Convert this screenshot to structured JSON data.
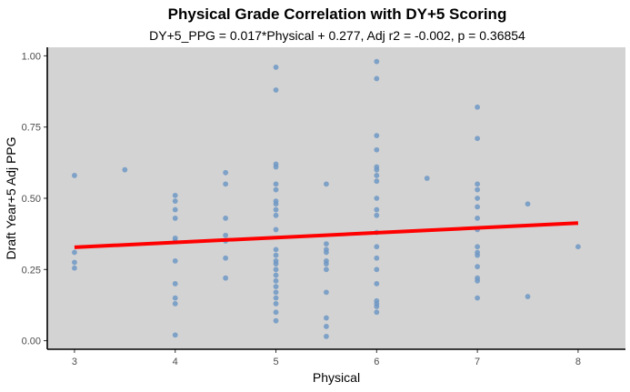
{
  "chart_data": {
    "type": "scatter",
    "title": "Physical Grade Correlation with DY+5 Scoring",
    "subtitle": "DY+5_PPG = 0.017*Physical + 0.277, Adj r2 = -0.002, p = 0.36854",
    "xlabel": "Physical",
    "ylabel": "Draft Year+5 Adj PPG",
    "xlim": [
      2.73,
      8.47
    ],
    "ylim": [
      -0.03,
      1.03
    ],
    "x_ticks": [
      3,
      4,
      5,
      6,
      7,
      8
    ],
    "x_tick_labels": [
      "3",
      "4",
      "5",
      "6",
      "7",
      "8"
    ],
    "y_ticks": [
      0.0,
      0.25,
      0.5,
      0.75,
      1.0
    ],
    "y_tick_labels": [
      "0.00",
      "0.25",
      "0.50",
      "0.75",
      "1.00"
    ],
    "grid": false,
    "background": "#d3d3d3",
    "point_color": "#6e98c4",
    "line_color": "#ff0000",
    "regression": {
      "slope": 0.017,
      "intercept": 0.277,
      "x_range": [
        3,
        8
      ]
    },
    "series": [
      {
        "points": [
          {
            "x": 3,
            "y": 0.58
          },
          {
            "x": 3,
            "y": 0.31
          },
          {
            "x": 3,
            "y": 0.275
          },
          {
            "x": 3,
            "y": 0.255
          },
          {
            "x": 3.5,
            "y": 0.6
          },
          {
            "x": 4,
            "y": 0.51
          },
          {
            "x": 4,
            "y": 0.49
          },
          {
            "x": 4,
            "y": 0.46
          },
          {
            "x": 4,
            "y": 0.43
          },
          {
            "x": 4,
            "y": 0.36
          },
          {
            "x": 4,
            "y": 0.35
          },
          {
            "x": 4,
            "y": 0.28
          },
          {
            "x": 4,
            "y": 0.2
          },
          {
            "x": 4,
            "y": 0.15
          },
          {
            "x": 4,
            "y": 0.13
          },
          {
            "x": 4,
            "y": 0.02
          },
          {
            "x": 4.5,
            "y": 0.59
          },
          {
            "x": 4.5,
            "y": 0.55
          },
          {
            "x": 4.5,
            "y": 0.43
          },
          {
            "x": 4.5,
            "y": 0.37
          },
          {
            "x": 4.5,
            "y": 0.35
          },
          {
            "x": 4.5,
            "y": 0.29
          },
          {
            "x": 4.5,
            "y": 0.22
          },
          {
            "x": 5,
            "y": 0.96
          },
          {
            "x": 5,
            "y": 0.88
          },
          {
            "x": 5,
            "y": 0.62
          },
          {
            "x": 5,
            "y": 0.61
          },
          {
            "x": 5,
            "y": 0.55
          },
          {
            "x": 5,
            "y": 0.53
          },
          {
            "x": 5,
            "y": 0.49
          },
          {
            "x": 5,
            "y": 0.48
          },
          {
            "x": 5,
            "y": 0.46
          },
          {
            "x": 5,
            "y": 0.44
          },
          {
            "x": 5,
            "y": 0.39
          },
          {
            "x": 5,
            "y": 0.32
          },
          {
            "x": 5,
            "y": 0.3
          },
          {
            "x": 5,
            "y": 0.28
          },
          {
            "x": 5,
            "y": 0.27
          },
          {
            "x": 5,
            "y": 0.25
          },
          {
            "x": 5,
            "y": 0.23
          },
          {
            "x": 5,
            "y": 0.21
          },
          {
            "x": 5,
            "y": 0.19
          },
          {
            "x": 5,
            "y": 0.17
          },
          {
            "x": 5,
            "y": 0.15
          },
          {
            "x": 5,
            "y": 0.13
          },
          {
            "x": 5,
            "y": 0.1
          },
          {
            "x": 5,
            "y": 0.07
          },
          {
            "x": 5.5,
            "y": 0.55
          },
          {
            "x": 5.5,
            "y": 0.34
          },
          {
            "x": 5.5,
            "y": 0.32
          },
          {
            "x": 5.5,
            "y": 0.31
          },
          {
            "x": 5.5,
            "y": 0.28
          },
          {
            "x": 5.5,
            "y": 0.27
          },
          {
            "x": 5.5,
            "y": 0.25
          },
          {
            "x": 5.5,
            "y": 0.17
          },
          {
            "x": 5.5,
            "y": 0.08
          },
          {
            "x": 5.5,
            "y": 0.05
          },
          {
            "x": 5.5,
            "y": 0.015
          },
          {
            "x": 6,
            "y": 0.98
          },
          {
            "x": 6,
            "y": 0.92
          },
          {
            "x": 6,
            "y": 0.72
          },
          {
            "x": 6,
            "y": 0.67
          },
          {
            "x": 6,
            "y": 0.61
          },
          {
            "x": 6,
            "y": 0.6
          },
          {
            "x": 6,
            "y": 0.58
          },
          {
            "x": 6,
            "y": 0.56
          },
          {
            "x": 6,
            "y": 0.5
          },
          {
            "x": 6,
            "y": 0.46
          },
          {
            "x": 6,
            "y": 0.44
          },
          {
            "x": 6,
            "y": 0.38
          },
          {
            "x": 6,
            "y": 0.33
          },
          {
            "x": 6,
            "y": 0.29
          },
          {
            "x": 6,
            "y": 0.25
          },
          {
            "x": 6,
            "y": 0.2
          },
          {
            "x": 6,
            "y": 0.14
          },
          {
            "x": 6,
            "y": 0.13
          },
          {
            "x": 6,
            "y": 0.12
          },
          {
            "x": 6,
            "y": 0.1
          },
          {
            "x": 6.5,
            "y": 0.57
          },
          {
            "x": 7,
            "y": 0.82
          },
          {
            "x": 7,
            "y": 0.71
          },
          {
            "x": 7,
            "y": 0.55
          },
          {
            "x": 7,
            "y": 0.53
          },
          {
            "x": 7,
            "y": 0.5
          },
          {
            "x": 7,
            "y": 0.47
          },
          {
            "x": 7,
            "y": 0.43
          },
          {
            "x": 7,
            "y": 0.39
          },
          {
            "x": 7,
            "y": 0.33
          },
          {
            "x": 7,
            "y": 0.31
          },
          {
            "x": 7,
            "y": 0.3
          },
          {
            "x": 7,
            "y": 0.26
          },
          {
            "x": 7,
            "y": 0.22
          },
          {
            "x": 7,
            "y": 0.21
          },
          {
            "x": 7,
            "y": 0.15
          },
          {
            "x": 7.5,
            "y": 0.48
          },
          {
            "x": 7.5,
            "y": 0.155
          },
          {
            "x": 8,
            "y": 0.33
          }
        ]
      }
    ]
  }
}
